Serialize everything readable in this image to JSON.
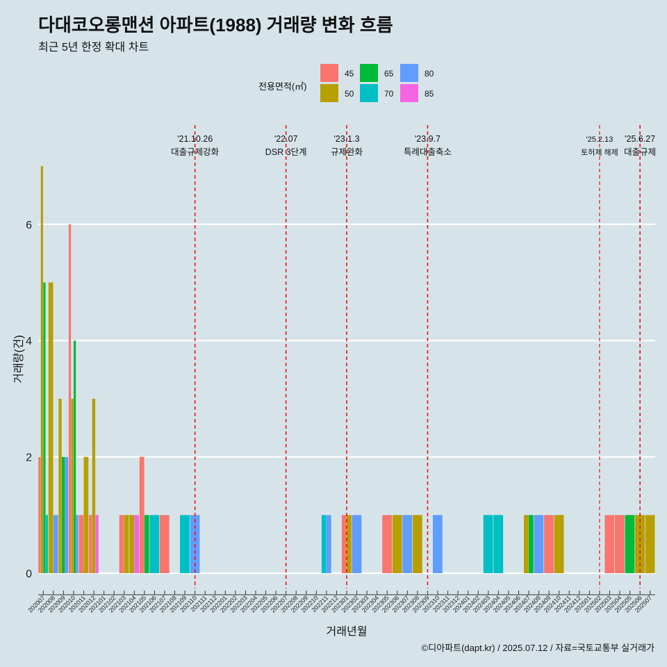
{
  "title": "다대코오롱맨션 아파트(1988) 거래량 변화 흐름",
  "subtitle": "최근 5년 한정 확대 차트",
  "caption": "©디아파트(dapt.kr) / 2025.07.12 / 자료=국토교통부 실거래가",
  "colors": {
    "background": "#d6e4ea",
    "grid": "#ffffff",
    "event_line": "#ee1111",
    "series": {
      "45": "#f8766d",
      "50": "#b79f00",
      "65": "#00ba38",
      "70": "#00bfc4",
      "80": "#619cff",
      "85": "#f564e3"
    }
  },
  "chart_data": {
    "type": "bar",
    "xlabel": "거래년월",
    "ylabel": "거래량(건)",
    "ylim": [
      -0.3,
      7.0
    ],
    "yticks": [
      0,
      2,
      4,
      6
    ],
    "grid": true,
    "legend": {
      "title": "전용면적(㎡)",
      "position": "top",
      "entries": [
        "45",
        "50",
        "65",
        "70",
        "80",
        "85"
      ]
    },
    "categories": [
      "202007",
      "202008",
      "202009",
      "202010",
      "202011",
      "202012",
      "202101",
      "202102",
      "202103",
      "202104",
      "202105",
      "202106",
      "202107",
      "202108",
      "202109",
      "202110",
      "202111",
      "202112",
      "202201",
      "202202",
      "202203",
      "202204",
      "202205",
      "202206",
      "202207",
      "202208",
      "202209",
      "202210",
      "202211",
      "202212",
      "202301",
      "202302",
      "202303",
      "202304",
      "202305",
      "202306",
      "202307",
      "202308",
      "202309",
      "202310",
      "202311",
      "202312",
      "202401",
      "202402",
      "202403",
      "202404",
      "202405",
      "202406",
      "202407",
      "202408",
      "202409",
      "202410",
      "202411",
      "202412",
      "202501",
      "202502",
      "202503",
      "202504",
      "202505",
      "202506",
      "202507"
    ],
    "series": [
      {
        "name": "45",
        "values": [
          2,
          0,
          0,
          6,
          1,
          1,
          0,
          0,
          1,
          0,
          2,
          0,
          1,
          0,
          0,
          0,
          0,
          0,
          0,
          0,
          0,
          0,
          0,
          0,
          0,
          0,
          0,
          0,
          0,
          0,
          1,
          0,
          0,
          0,
          1,
          0,
          0,
          0,
          0,
          0,
          0,
          0,
          0,
          0,
          0,
          0,
          0,
          0,
          0,
          0,
          1,
          0,
          0,
          0,
          0,
          0,
          1,
          1,
          0,
          0,
          0
        ]
      },
      {
        "name": "50",
        "values": [
          7,
          5,
          3,
          3,
          2,
          3,
          0,
          0,
          1,
          1,
          0,
          0,
          0,
          0,
          0,
          0,
          0,
          0,
          0,
          0,
          0,
          0,
          0,
          0,
          0,
          0,
          0,
          0,
          0,
          0,
          1,
          0,
          0,
          0,
          0,
          1,
          0,
          1,
          0,
          0,
          0,
          0,
          0,
          0,
          0,
          0,
          0,
          0,
          1,
          0,
          0,
          1,
          0,
          0,
          0,
          0,
          0,
          0,
          0,
          1,
          1
        ]
      },
      {
        "name": "65",
        "values": [
          5,
          0,
          2,
          4,
          0,
          0,
          0,
          0,
          0,
          0,
          1,
          0,
          0,
          0,
          0,
          0,
          0,
          0,
          0,
          0,
          0,
          0,
          0,
          0,
          0,
          0,
          0,
          0,
          0,
          0,
          0,
          0,
          0,
          0,
          0,
          0,
          0,
          0,
          0,
          0,
          0,
          0,
          0,
          0,
          0,
          0,
          0,
          0,
          1,
          0,
          0,
          0,
          0,
          0,
          0,
          0,
          0,
          0,
          1,
          0,
          0
        ]
      },
      {
        "name": "70",
        "values": [
          1,
          0,
          0,
          0,
          0,
          0,
          0,
          0,
          0,
          0,
          0,
          1,
          0,
          0,
          1,
          0,
          0,
          0,
          0,
          0,
          0,
          0,
          0,
          0,
          0,
          0,
          0,
          0,
          1,
          0,
          0,
          0,
          0,
          0,
          0,
          0,
          0,
          0,
          0,
          0,
          0,
          0,
          0,
          0,
          1,
          1,
          0,
          0,
          0,
          0,
          0,
          0,
          0,
          0,
          0,
          0,
          0,
          0,
          0,
          0,
          0
        ]
      },
      {
        "name": "80",
        "values": [
          0,
          1,
          2,
          1,
          0,
          0,
          0,
          0,
          0,
          0,
          0,
          0,
          0,
          0,
          0,
          1,
          0,
          0,
          0,
          0,
          0,
          0,
          0,
          0,
          0,
          0,
          0,
          0,
          1,
          0,
          0,
          1,
          0,
          0,
          0,
          0,
          1,
          0,
          0,
          1,
          0,
          0,
          0,
          0,
          0,
          0,
          0,
          0,
          0,
          1,
          0,
          0,
          0,
          0,
          0,
          0,
          0,
          0,
          0,
          0,
          0
        ]
      },
      {
        "name": "85",
        "values": [
          0,
          0,
          0,
          0,
          0,
          1,
          0,
          0,
          0,
          1,
          0,
          0,
          0,
          0,
          0,
          0,
          0,
          0,
          0,
          0,
          0,
          0,
          0,
          0,
          0,
          0,
          0,
          0,
          0,
          0,
          0,
          0,
          0,
          0,
          0,
          0,
          0,
          0,
          0,
          0,
          0,
          0,
          0,
          0,
          0,
          0,
          0,
          0,
          0,
          0,
          0,
          0,
          0,
          0,
          0,
          0,
          0,
          0,
          0,
          0,
          0
        ]
      }
    ],
    "events": [
      {
        "x": "202110",
        "date": "'21.10.26",
        "label": "대출규제강화",
        "size": "large"
      },
      {
        "x": "202207",
        "date": "'22.07",
        "label": "DSR 3단계",
        "size": "large"
      },
      {
        "x": "202301",
        "date": "'23.1.3",
        "label": "규제완화",
        "size": "large"
      },
      {
        "x": "202309",
        "date": "'23.9.7",
        "label": "특례대출축소",
        "size": "large"
      },
      {
        "x": "202502",
        "date": "'25.2.13",
        "label": "토허제 해제",
        "size": "small"
      },
      {
        "x": "202506",
        "date": "'25.6.27",
        "label": "대출규제",
        "size": "large"
      }
    ]
  }
}
